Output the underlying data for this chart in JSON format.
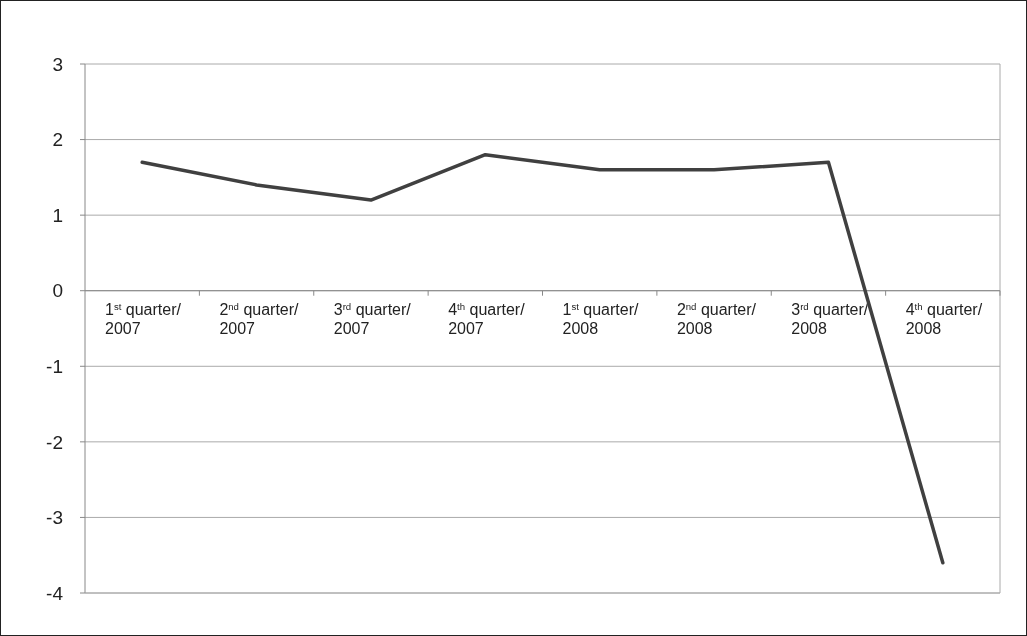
{
  "chart_data": {
    "type": "line",
    "categories": [
      "1$^{st}$ quarter/\n2007",
      "2$^{nd}$ quarter/\n2007",
      "3$^{rd}$ quarter/\n2007",
      "4$^{th}$ quarter/\n2007",
      "1$^{st}$ quarter/\n2008",
      "2$^{nd}$ quarter/\n2008",
      "3$^{rd}$ quarter/\n2008",
      "4$^{th}$ quarter/\n2008"
    ],
    "series": [
      {
        "color": "#404040",
        "values": [
          1.7,
          1.4,
          1.2,
          1.8,
          1.6,
          1.6,
          1.7,
          -3.6
        ]
      }
    ],
    "ylim": [
      -4,
      3
    ],
    "yticks": [
      -4,
      -3,
      -2,
      -1,
      0,
      1,
      2,
      3
    ],
    "grid": "y",
    "marker": "none",
    "line_style": "solid"
  }
}
